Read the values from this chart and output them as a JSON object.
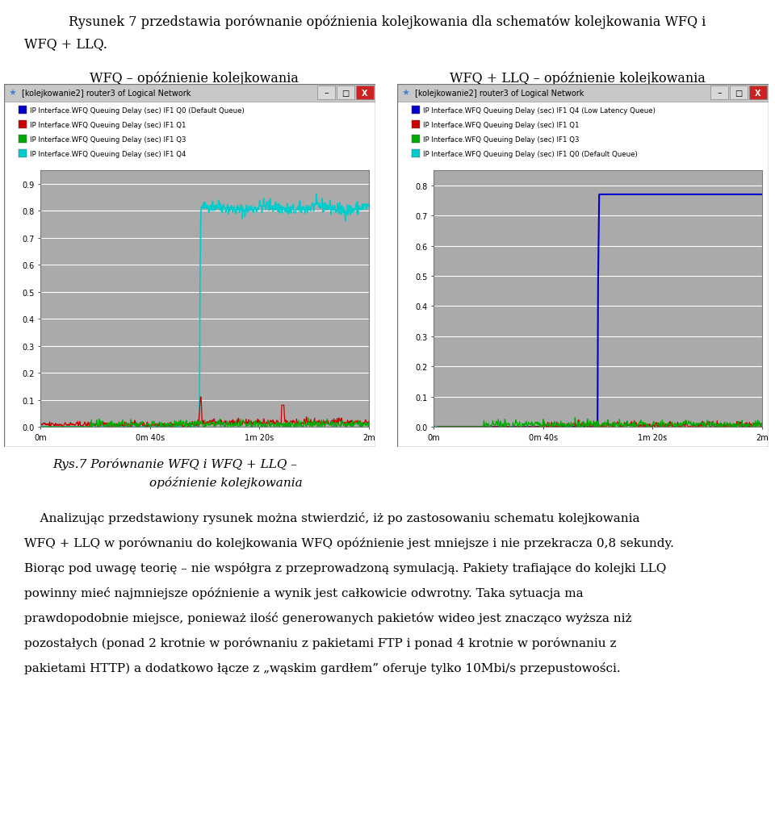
{
  "title_line1": "Rysunek 7 przedstawia porównanie opóźnienia kolejkowania dla schematów kolejkowania WFQ i",
  "title_line2": "WFQ + LLQ.",
  "label_left": "WFQ – opóźnienie kolejkowania",
  "label_right": "WFQ + LLQ – opóźnienie kolejkowania",
  "fig_caption_line1": "Rys.7 Porównanie WFQ i WFQ + LLQ –",
  "fig_caption_line2": "opóźnienie kolejkowania",
  "window_title": "[kolejkowanie2] router3 of Logical Network",
  "legend_left": [
    {
      "color": "#0000cc",
      "label": "IP Interface.WFQ Queuing Delay (sec) IF1 Q0 (Default Queue)"
    },
    {
      "color": "#cc0000",
      "label": "IP Interface.WFQ Queuing Delay (sec) IF1 Q1"
    },
    {
      "color": "#00aa00",
      "label": "IP Interface.WFQ Queuing Delay (sec) IF1 Q3"
    },
    {
      "color": "#00cccc",
      "label": "IP Interface.WFQ Queuing Delay (sec) IF1 Q4"
    }
  ],
  "legend_right": [
    {
      "color": "#0000cc",
      "label": "IP Interface.WFQ Queuing Delay (sec) IF1 Q4 (Low Latency Queue)"
    },
    {
      "color": "#cc0000",
      "label": "IP Interface.WFQ Queuing Delay (sec) IF1 Q1"
    },
    {
      "color": "#00aa00",
      "label": "IP Interface.WFQ Queuing Delay (sec) IF1 Q3"
    },
    {
      "color": "#00cccc",
      "label": "IP Interface.WFQ Queuing Delay (sec) IF1 Q0 (Default Queue)"
    }
  ],
  "bg_color": "#ffffff",
  "panel_bg": "#c8c8c8",
  "titlebar_bg": "#c8c8c8",
  "plot_bg": "#aaaaaa",
  "body_line1": "    Analizując przedstawiony rysunek można stwierdzić, iż po zastosowaniu schematu kolejkowania",
  "body_line2": "WFQ + LLQ w porównaniu do kolejkowania WFQ opóźnienie jest mniejsze i nie przekracza 0,8 sekundy.",
  "body_line3": "Biorąc pod uwagę teorię – nie współgra z przeprowadzoną symulacją. Pakiety trafiające do kolejki LLQ",
  "body_line4": "powinny mieć najmniejsze opóźnienie a wynik jest całkowicie odwrotny. Taka sytuacja ma",
  "body_line5": "prawdopodobnie miejsce, ponieważ ilość generowanych pakietów wideo jest znacząco wyższa niż",
  "body_line6": "pozostałych (ponad 2 krotnie w porównaniu z pakietami FTP i ponad 4 krotnie w porównaniu z",
  "body_line7": "pakietami HTTP) a dodatkowo łącze z „wąskim gardłem” oferuje tylko 10Mbi/s przepustowości."
}
